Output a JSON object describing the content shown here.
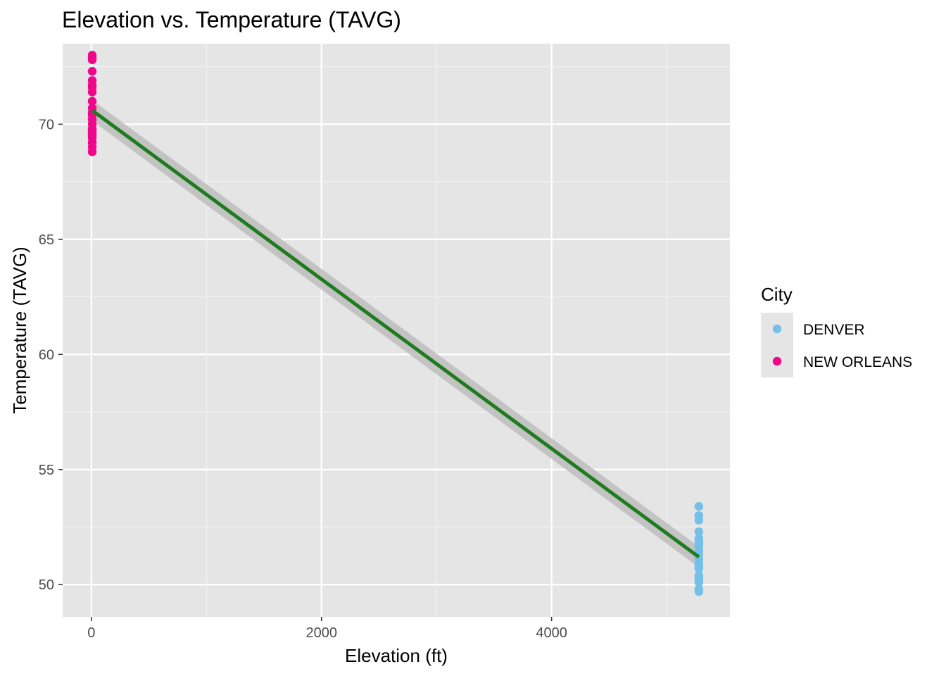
{
  "chart_data": {
    "type": "scatter",
    "title": "Elevation vs. Temperature (TAVG)",
    "xlabel": "Elevation (ft)",
    "ylabel": "Temperature (TAVG)",
    "xlim": [
      -250,
      5550
    ],
    "ylim": [
      48.6,
      73.5
    ],
    "x_ticks": [
      0,
      2000,
      4000
    ],
    "x_tick_labels": [
      "0",
      "2000",
      "4000"
    ],
    "y_ticks": [
      50,
      55,
      60,
      65,
      70
    ],
    "y_tick_labels": [
      "50",
      "55",
      "60",
      "65",
      "70"
    ],
    "grid": true,
    "legend": {
      "title": "City",
      "position": "right",
      "entries": [
        {
          "label": "DENVER",
          "color": "#74c0e8"
        },
        {
          "label": "NEW ORLEANS",
          "color": "#f0068a"
        }
      ]
    },
    "series": [
      {
        "name": "DENVER",
        "color": "#74c0e8",
        "x": [
          5280,
          5280,
          5280,
          5280,
          5280,
          5280,
          5280,
          5280,
          5280,
          5280,
          5280,
          5280,
          5280,
          5280,
          5280,
          5280,
          5280,
          5280,
          5280,
          5280
        ],
        "y": [
          53.4,
          53.0,
          52.8,
          52.3,
          51.9,
          51.7,
          51.5,
          51.3,
          51.1,
          50.9,
          50.7,
          50.4,
          50.3,
          50.1,
          49.8,
          49.7,
          52.0,
          51.8,
          50.8,
          50.2
        ]
      },
      {
        "name": "NEW ORLEANS",
        "color": "#f0068a",
        "x": [
          7,
          7,
          7,
          7,
          7,
          7,
          7,
          7,
          7,
          7,
          7,
          7,
          7,
          7,
          7,
          7,
          7,
          7,
          7,
          7,
          7,
          7
        ],
        "y": [
          73.0,
          72.9,
          72.3,
          71.9,
          71.7,
          71.4,
          71.0,
          70.7,
          70.4,
          70.2,
          70.0,
          69.8,
          69.6,
          69.4,
          69.2,
          69.0,
          68.8,
          72.8,
          71.6,
          70.5,
          69.7,
          69.5
        ]
      }
    ],
    "trend_line": {
      "type": "linear",
      "color": "#1e7b1e",
      "x": [
        7,
        5280
      ],
      "y": [
        70.6,
        51.2
      ],
      "confidence_band": {
        "color": "#bdbdbd",
        "lower": [
          70.15,
          50.75
        ],
        "upper": [
          71.05,
          51.65
        ]
      }
    }
  }
}
